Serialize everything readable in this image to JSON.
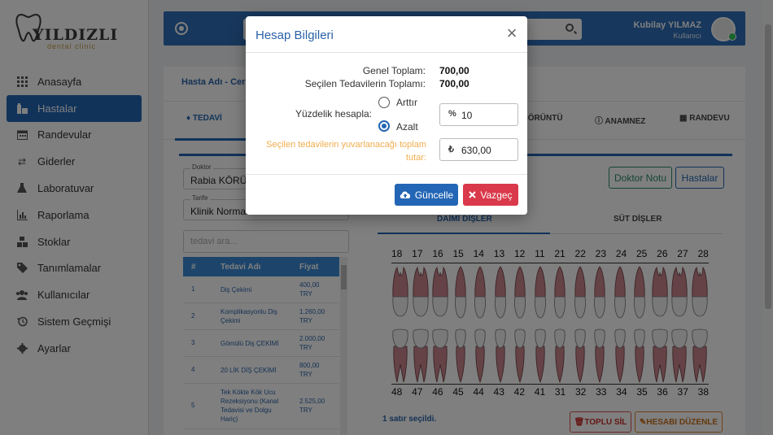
{
  "app": {
    "brand": "YILDIZLI",
    "brand_sub": "dental clinic",
    "accent": "#2366b5"
  },
  "sidebar": {
    "items": [
      {
        "label": "Anasayfa",
        "icon": "grid-icon",
        "active": false
      },
      {
        "label": "Hastalar",
        "icon": "patients-icon",
        "active": true
      },
      {
        "label": "Randevular",
        "icon": "calendar-icon",
        "active": false
      },
      {
        "label": "Giderler",
        "icon": "exchange-icon",
        "active": false
      },
      {
        "label": "Laboratuvar",
        "icon": "flask-icon",
        "active": false
      },
      {
        "label": "Raporlama",
        "icon": "chart-icon",
        "active": false
      },
      {
        "label": "Stoklar",
        "icon": "boxes-icon",
        "active": false
      },
      {
        "label": "Tanımlamalar",
        "icon": "tags-icon",
        "active": false
      },
      {
        "label": "Kullanıcılar",
        "icon": "users-icon",
        "active": false
      },
      {
        "label": "Sistem Geçmişi",
        "icon": "history-icon",
        "active": false
      },
      {
        "label": "Ayarlar",
        "icon": "gear-icon",
        "active": false
      }
    ]
  },
  "topbar": {
    "user_name": "Kubilay YILMAZ",
    "user_role": "Kullanıcı"
  },
  "panel": {
    "breadcrumb": "Hasta Adı - Cer",
    "tabs": [
      {
        "label": "TEDAVİ",
        "active": true
      },
      {
        "label": "GÖRÜNTÜ",
        "active": false
      },
      {
        "label": "ANAMNEZ",
        "active": false
      },
      {
        "label": "RANDEVU",
        "active": false
      }
    ],
    "doctor_label": "Doktor",
    "doctor_value": "Rabia KÖRÜKÇÜ",
    "tariff_label": "Tarife",
    "tariff_value": "Klinik Normal Tarifesi",
    "search_placeholder": "tedavi ara...",
    "table_headers": [
      "#",
      "Tedavi Adı",
      "Fiyat"
    ],
    "table_rows": [
      {
        "n": "1",
        "name": "Diş Çekimi",
        "price": "400,00 TRY"
      },
      {
        "n": "2",
        "name": "Komplikasyonlu Diş Çekimi",
        "price": "1.260,00 TRY"
      },
      {
        "n": "3",
        "name": "Gömülü Diş ÇEKİMİ",
        "price": "2.000,00 TRY"
      },
      {
        "n": "4",
        "name": "20 LİK DİŞ ÇEKİMİ",
        "price": "800,00 TRY"
      },
      {
        "n": "5",
        "name": "Tek Kökte Kök Ucu Rezeksiyonu (Kanal Tedavisi ve Dolgu Hariç)",
        "price": "2.525,00 TRY"
      }
    ],
    "doctor_note_btn": "Doktor Notu",
    "patients_btn": "Hastalar",
    "teeth_tabs": [
      "DAİMİ DİŞLER",
      "SÜT DİŞLER"
    ],
    "upper_teeth": [
      "18",
      "17",
      "16",
      "15",
      "14",
      "13",
      "12",
      "11",
      "21",
      "22",
      "23",
      "24",
      "25",
      "26",
      "27",
      "28"
    ],
    "lower_teeth": [
      "48",
      "47",
      "46",
      "45",
      "44",
      "43",
      "42",
      "41",
      "31",
      "32",
      "33",
      "34",
      "35",
      "36",
      "37",
      "38"
    ],
    "selected_text": "1 satır seçildi.",
    "bulk_delete_btn": "TOPLU SİL",
    "edit_account_btn": "HESABI DÜZENLE"
  },
  "modal": {
    "title": "Hesap Bilgileri",
    "grand_total_label": "Genel Toplam:",
    "grand_total_value": "700,00",
    "selected_total_label": "Seçilen Tedavilerin Toplamı:",
    "selected_total_value": "700,00",
    "percent_label": "Yüzdelik hesapla:",
    "option_increase": "Arttır",
    "option_decrease": "Azalt",
    "selected_option": "Azalt",
    "percent_symbol": "%",
    "percent_value": "10",
    "rounded_label_line1": "Seçilen tedavilerin yuvarlanacağı toplam",
    "rounded_label_line2": "tutar:",
    "currency_symbol": "₺",
    "rounded_value": "630,00",
    "update_btn": "Güncelle",
    "cancel_btn": "Vazgeç"
  }
}
